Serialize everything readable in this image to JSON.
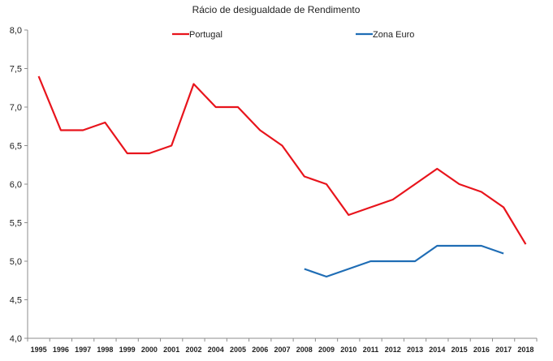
{
  "chart_data": {
    "type": "line",
    "title": "Rácio de desigualdade de Rendimento",
    "xlabel": "",
    "ylabel": "",
    "x": [
      "1995",
      "1996",
      "1997",
      "1998",
      "1999",
      "2000",
      "2001",
      "2002",
      "2004",
      "2005",
      "2006",
      "2007",
      "2008",
      "2009",
      "2010",
      "2011",
      "2012",
      "2013",
      "2014",
      "2015",
      "2016",
      "2017",
      "2018"
    ],
    "ylim": [
      4.0,
      8.0
    ],
    "yticks": [
      "4,0",
      "4,5",
      "5,0",
      "5,5",
      "6,0",
      "6,5",
      "7,0",
      "7,5",
      "8,0"
    ],
    "grid": false,
    "legend_position": "top",
    "series": [
      {
        "name": "Portugal",
        "color": "#e8141c",
        "values": [
          7.4,
          6.7,
          6.7,
          6.8,
          6.4,
          6.4,
          6.5,
          7.3,
          7.0,
          7.0,
          6.7,
          6.5,
          6.1,
          6.0,
          5.6,
          5.7,
          5.8,
          6.0,
          6.2,
          6.0,
          5.9,
          5.7,
          5.22
        ]
      },
      {
        "name": "Zona Euro",
        "color": "#1f6db5",
        "values": [
          null,
          null,
          null,
          null,
          null,
          null,
          null,
          null,
          null,
          null,
          null,
          null,
          4.9,
          4.8,
          4.9,
          5.0,
          5.0,
          5.0,
          5.2,
          5.2,
          5.2,
          5.1,
          null
        ]
      }
    ]
  }
}
